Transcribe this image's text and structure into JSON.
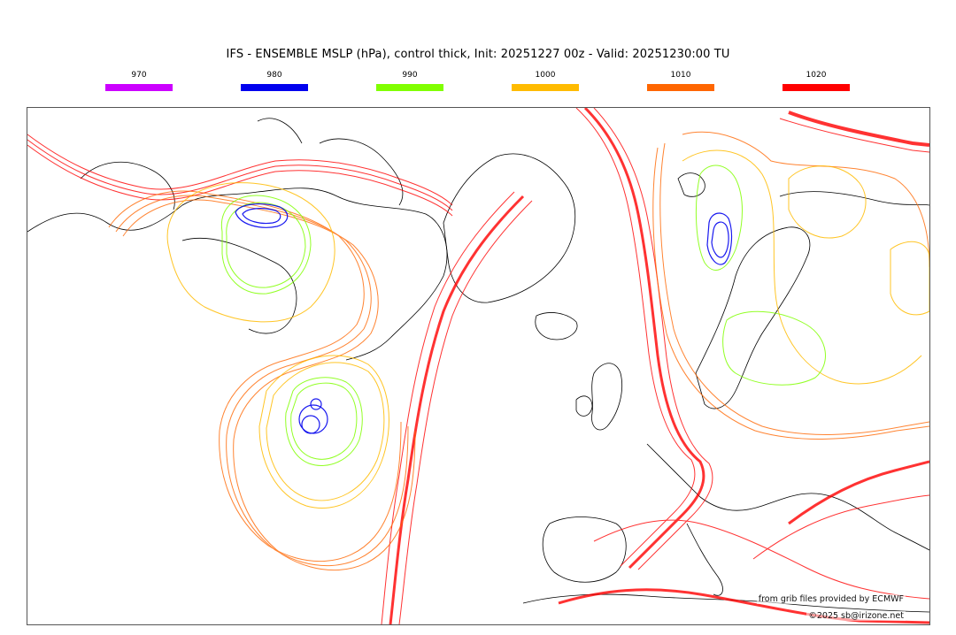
{
  "title": "IFS - ENSEMBLE MSLP (hPa), control thick, Init: 20251227 00z - Valid: 20251230:00 TU",
  "legend": [
    {
      "label": "970",
      "color": "#cc00ff"
    },
    {
      "label": "980",
      "color": "#0000ee"
    },
    {
      "label": "990",
      "color": "#80ff00"
    },
    {
      "label": "1000",
      "color": "#ffbb00"
    },
    {
      "label": "1010",
      "color": "#ff6600"
    },
    {
      "label": "1020",
      "color": "#ff0000"
    }
  ],
  "credits": {
    "source": "from grib files provided by ECMWF",
    "copyright": "©2025 sb@irizone.net"
  }
}
